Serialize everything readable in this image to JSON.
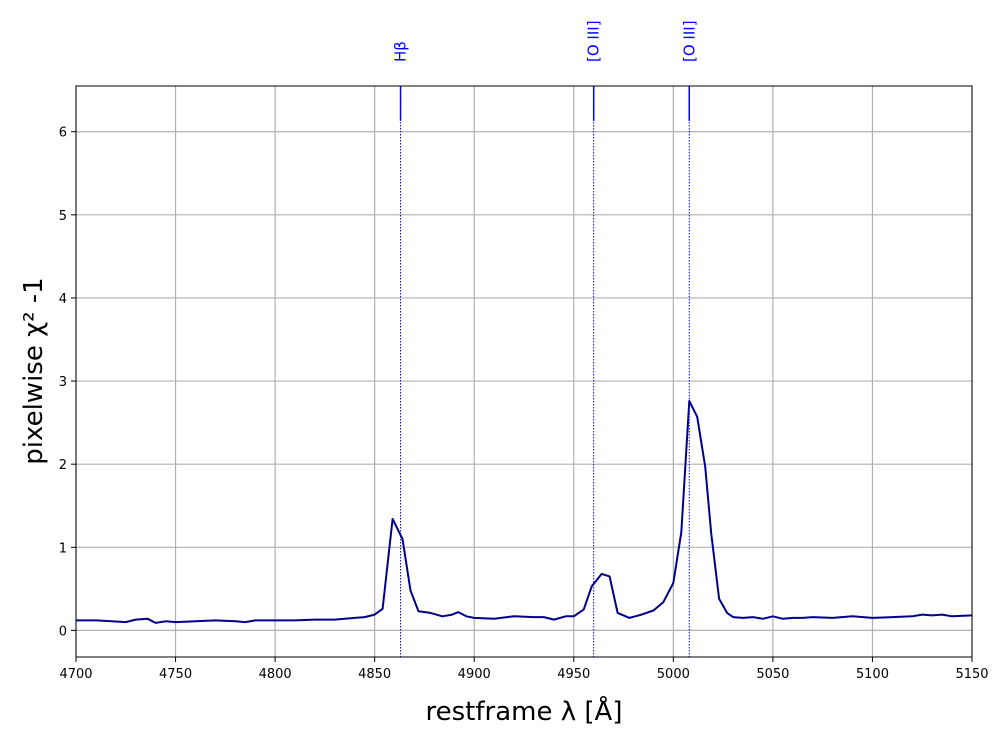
{
  "chart_data": {
    "type": "line",
    "title": "",
    "xlabel": "restframe λ [Å]",
    "ylabel": "pixelwise χ² -1",
    "xlim": [
      4700,
      5150
    ],
    "ylim": [
      -0.32,
      6.55
    ],
    "x_ticks": [
      4700,
      4750,
      4800,
      4850,
      4900,
      4950,
      5000,
      5050,
      5100,
      5150
    ],
    "y_ticks": [
      0,
      1,
      2,
      3,
      4,
      5,
      6
    ],
    "grid": true,
    "series_color": "#00008b",
    "marker_color": "#0000ff",
    "emission_lines": [
      {
        "label": "Hβ",
        "x": 4863
      },
      {
        "label": "[O III]",
        "x": 4960
      },
      {
        "label": "[O III]",
        "x": 5008
      }
    ],
    "series": [
      {
        "x": [
          4700,
          4710,
          4718,
          4725,
          4730,
          4736,
          4740,
          4745,
          4750,
          4760,
          4770,
          4780,
          4785,
          4790,
          4800,
          4810,
          4820,
          4830,
          4840,
          4845,
          4850,
          4854,
          4859,
          4864,
          4868,
          4872,
          4878,
          4884,
          4889,
          4892,
          4896,
          4900,
          4910,
          4920,
          4930,
          4935,
          4940,
          4946,
          4950,
          4955,
          4959,
          4964,
          4968,
          4972,
          4978,
          4984,
          4990,
          4995,
          5000,
          5004,
          5008,
          5012,
          5016,
          5019,
          5023,
          5027,
          5030,
          5035,
          5040,
          5045,
          5050,
          5055,
          5060,
          5065,
          5070,
          5080,
          5090,
          5100,
          5110,
          5120,
          5125,
          5130,
          5135,
          5140,
          5150
        ],
        "values": [
          0.12,
          0.12,
          0.11,
          0.1,
          0.13,
          0.14,
          0.09,
          0.11,
          0.1,
          0.11,
          0.12,
          0.11,
          0.1,
          0.12,
          0.12,
          0.12,
          0.13,
          0.13,
          0.15,
          0.16,
          0.19,
          0.26,
          1.34,
          1.1,
          0.48,
          0.23,
          0.21,
          0.17,
          0.19,
          0.22,
          0.17,
          0.15,
          0.14,
          0.17,
          0.16,
          0.16,
          0.13,
          0.17,
          0.17,
          0.25,
          0.53,
          0.68,
          0.65,
          0.21,
          0.15,
          0.19,
          0.24,
          0.34,
          0.57,
          1.18,
          2.76,
          2.57,
          1.97,
          1.17,
          0.38,
          0.21,
          0.16,
          0.15,
          0.16,
          0.14,
          0.17,
          0.14,
          0.15,
          0.15,
          0.16,
          0.15,
          0.17,
          0.15,
          0.16,
          0.17,
          0.19,
          0.18,
          0.19,
          0.17,
          0.18
        ]
      }
    ]
  }
}
